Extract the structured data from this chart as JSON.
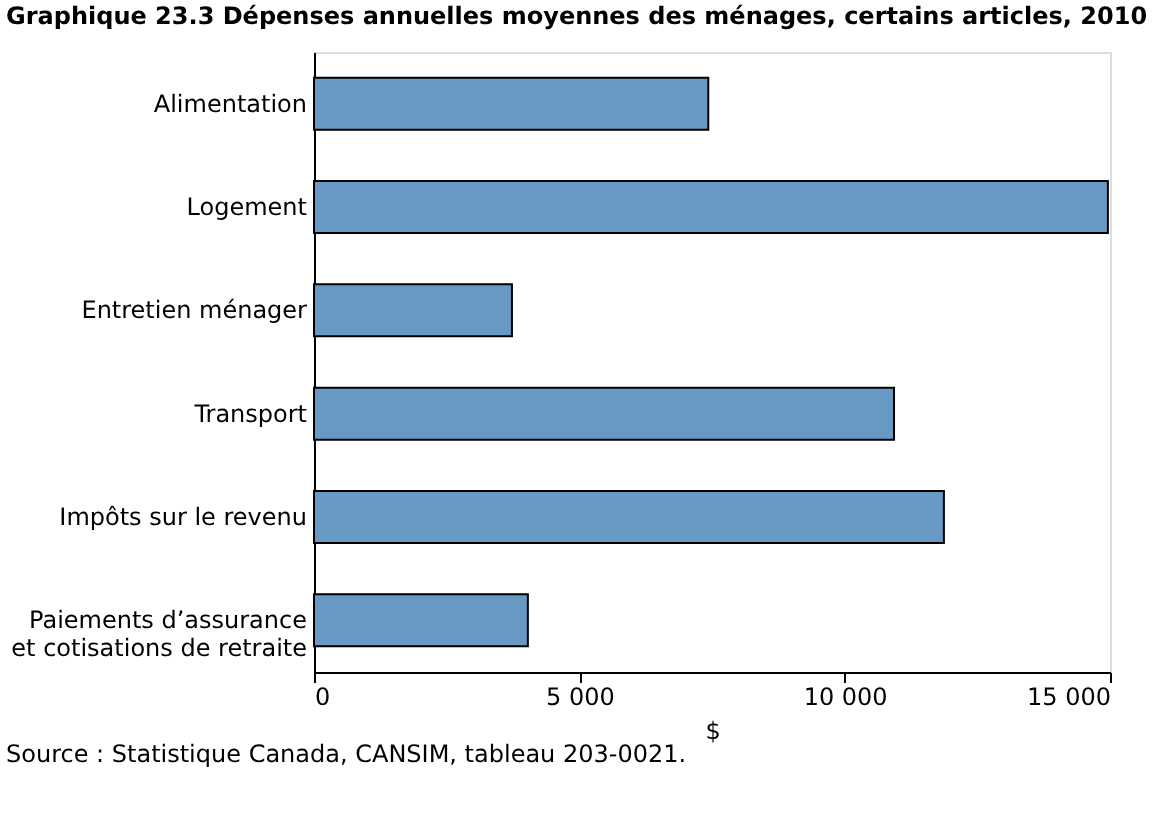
{
  "chart_data": {
    "type": "bar",
    "orientation": "horizontal",
    "title": "Graphique 23.3  Dépenses annuelles moyennes des ménages, certains articles, 2010",
    "categories": [
      "Alimentation",
      "Logement",
      "Entretien ménager",
      "Transport",
      "Impôts sur le revenu",
      "Paiements d’assurance\net cotisations de retraite"
    ],
    "values": [
      7430,
      14960,
      3730,
      10930,
      11870,
      4030
    ],
    "color": "#6799c4",
    "xlim": [
      0,
      15000
    ],
    "xticks": [
      0,
      {
        "value": 5000,
        "label": "5 000"
      },
      {
        "value": 10000,
        "label": "10 000"
      },
      {
        "value": 15000,
        "label": "15 000"
      }
    ],
    "xlabel": "$",
    "grid": false,
    "annotations": [
      "Source : Statistique Canada, CANSIM, tableau 203-0021."
    ]
  }
}
